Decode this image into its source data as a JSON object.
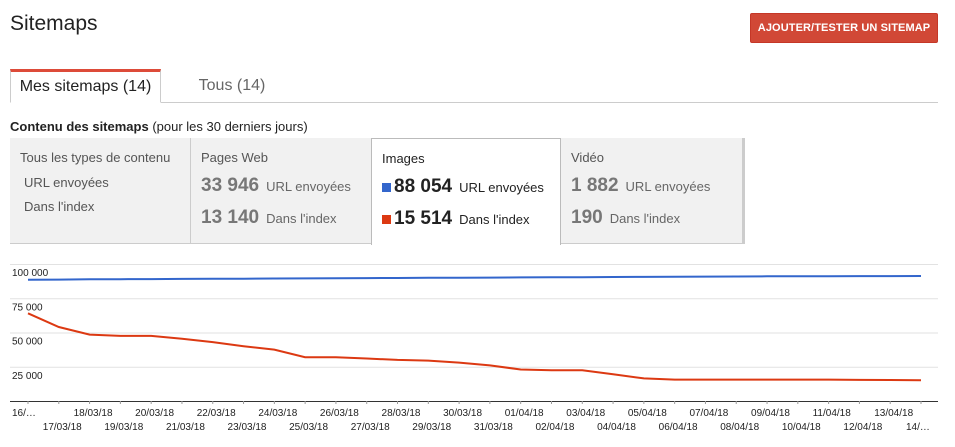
{
  "header": {
    "title": "Sitemaps",
    "add_button": "AJOUTER/TESTER UN SITEMAP"
  },
  "tabs": [
    {
      "label": "Mes sitemaps (14)",
      "active": true
    },
    {
      "label": "Tous (14)",
      "active": false
    }
  ],
  "section": {
    "title_bold": "Contenu des sitemaps",
    "title_rest": " (pour les 30 derniers jours)"
  },
  "panels": {
    "all": {
      "title": "Tous les types de contenu",
      "label_sent": "URL envoyées",
      "label_index": "Dans l'index"
    },
    "web": {
      "title": "Pages Web",
      "sent": "33 946",
      "sent_label": "URL envoyées",
      "index": "13 140",
      "index_label": "Dans l'index"
    },
    "images": {
      "title": "Images",
      "sent": "88 054",
      "sent_label": "URL envoyées",
      "index": "15 514",
      "index_label": "Dans l'index"
    },
    "video": {
      "title": "Vidéo",
      "sent": "1 882",
      "sent_label": "URL envoyées",
      "index": "190",
      "index_label": "Dans l'index"
    }
  },
  "colors": {
    "sent_series": "#3366cc",
    "index_series": "#dc3912",
    "accent_button": "#d14836",
    "active_tab_border": "#dd4b39"
  },
  "chart_data": {
    "type": "line",
    "y_ticks": [
      "100 000",
      "75 000",
      "50 000",
      "25 000"
    ],
    "ylim": [
      0,
      100000
    ],
    "grid": true,
    "x": [
      "16/…",
      "17/03/18",
      "18/03/18",
      "19/03/18",
      "20/03/18",
      "21/03/18",
      "22/03/18",
      "23/03/18",
      "24/03/18",
      "25/03/18",
      "26/03/18",
      "27/03/18",
      "28/03/18",
      "29/03/18",
      "30/03/18",
      "31/03/18",
      "01/04/18",
      "02/04/18",
      "03/04/18",
      "04/04/18",
      "05/04/18",
      "06/04/18",
      "07/04/18",
      "08/04/18",
      "09/04/18",
      "10/04/18",
      "11/04/18",
      "12/04/18",
      "13/04/18",
      "14/…"
    ],
    "series": [
      {
        "name": "URL envoyées",
        "values": [
          88500,
          88600,
          88800,
          88900,
          89000,
          89100,
          89200,
          89300,
          89400,
          89500,
          89600,
          89700,
          89800,
          89900,
          90000,
          90100,
          90200,
          90300,
          90400,
          90500,
          90600,
          90700,
          90800,
          90900,
          91000,
          91050,
          91100,
          91150,
          91200,
          91250
        ]
      },
      {
        "name": "Dans l'index",
        "values": [
          64000,
          54000,
          48500,
          47500,
          47500,
          45500,
          43000,
          40000,
          37500,
          32000,
          32000,
          31000,
          30000,
          29500,
          28000,
          26000,
          23000,
          22500,
          22500,
          19500,
          16500,
          15600,
          15600,
          15600,
          15600,
          15600,
          15600,
          15400,
          15300,
          15200
        ]
      }
    ]
  }
}
